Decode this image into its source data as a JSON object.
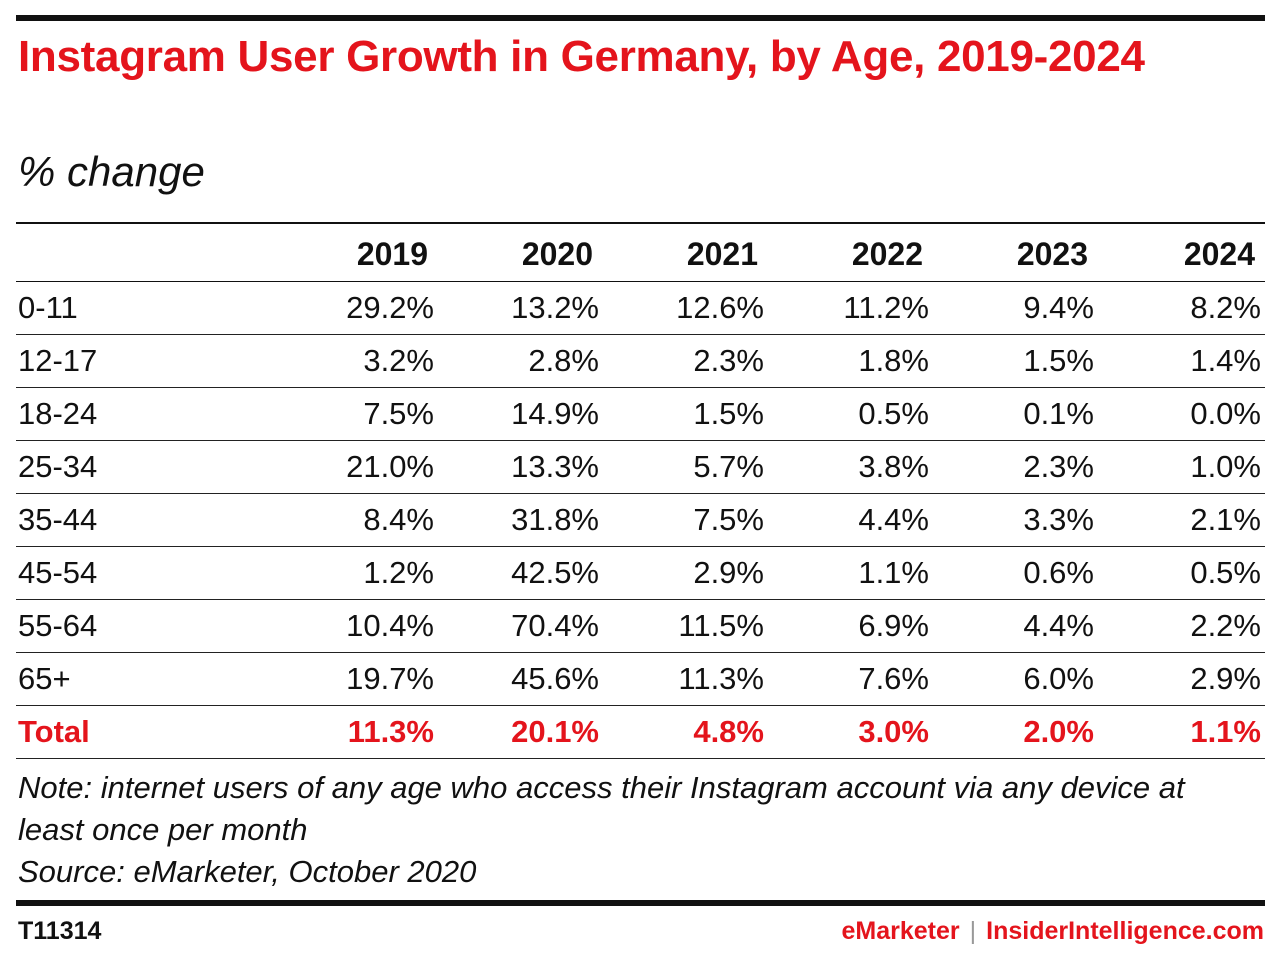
{
  "header": {
    "title": "Instagram User Growth in Germany, by Age, 2019-2024",
    "subtitle": "% change"
  },
  "chart_data": {
    "type": "table",
    "title": "Instagram User Growth in Germany, by Age, 2019-2024",
    "subtitle": "% change",
    "columns": [
      "2019",
      "2020",
      "2021",
      "2022",
      "2023",
      "2024"
    ],
    "rows": [
      {
        "label": "0-11",
        "values": [
          "29.2%",
          "13.2%",
          "12.6%",
          "11.2%",
          "9.4%",
          "8.2%"
        ]
      },
      {
        "label": "12-17",
        "values": [
          "3.2%",
          "2.8%",
          "2.3%",
          "1.8%",
          "1.5%",
          "1.4%"
        ]
      },
      {
        "label": "18-24",
        "values": [
          "7.5%",
          "14.9%",
          "1.5%",
          "0.5%",
          "0.1%",
          "0.0%"
        ]
      },
      {
        "label": "25-34",
        "values": [
          "21.0%",
          "13.3%",
          "5.7%",
          "3.8%",
          "2.3%",
          "1.0%"
        ]
      },
      {
        "label": "35-44",
        "values": [
          "8.4%",
          "31.8%",
          "7.5%",
          "4.4%",
          "3.3%",
          "2.1%"
        ]
      },
      {
        "label": "45-54",
        "values": [
          "1.2%",
          "42.5%",
          "2.9%",
          "1.1%",
          "0.6%",
          "0.5%"
        ]
      },
      {
        "label": "55-64",
        "values": [
          "10.4%",
          "70.4%",
          "11.5%",
          "6.9%",
          "4.4%",
          "2.2%"
        ]
      },
      {
        "label": "65+",
        "values": [
          "19.7%",
          "45.6%",
          "11.3%",
          "7.6%",
          "6.0%",
          "2.9%"
        ]
      }
    ],
    "total": {
      "label": "Total",
      "values": [
        "11.3%",
        "20.1%",
        "4.8%",
        "3.0%",
        "2.0%",
        "1.1%"
      ]
    },
    "highlight_color": "#e4141c"
  },
  "notes": {
    "note": "Note: internet users of any age who access their Instagram account via any device at least once per month",
    "source": "Source: eMarketer, October 2020"
  },
  "footer": {
    "id": "T11314",
    "brand": "eMarketer",
    "separator": "|",
    "site": "InsiderIntelligence.com"
  }
}
